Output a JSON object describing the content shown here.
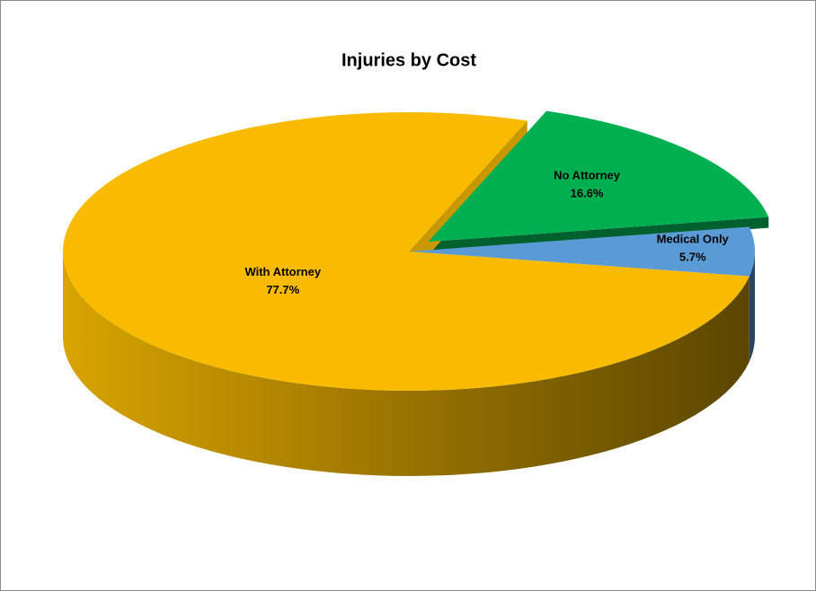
{
  "chart_data": {
    "type": "pie3d",
    "title": "Injuries by Cost",
    "categories": [
      "No Attorney",
      "Medical Only",
      "With Attorney"
    ],
    "values": [
      16.6,
      5.7,
      77.7
    ],
    "value_labels": [
      "16.6%",
      "5.7%",
      "77.7%"
    ],
    "colors": [
      "#00b050",
      "#5b9bd5",
      "#f9bb00"
    ]
  }
}
